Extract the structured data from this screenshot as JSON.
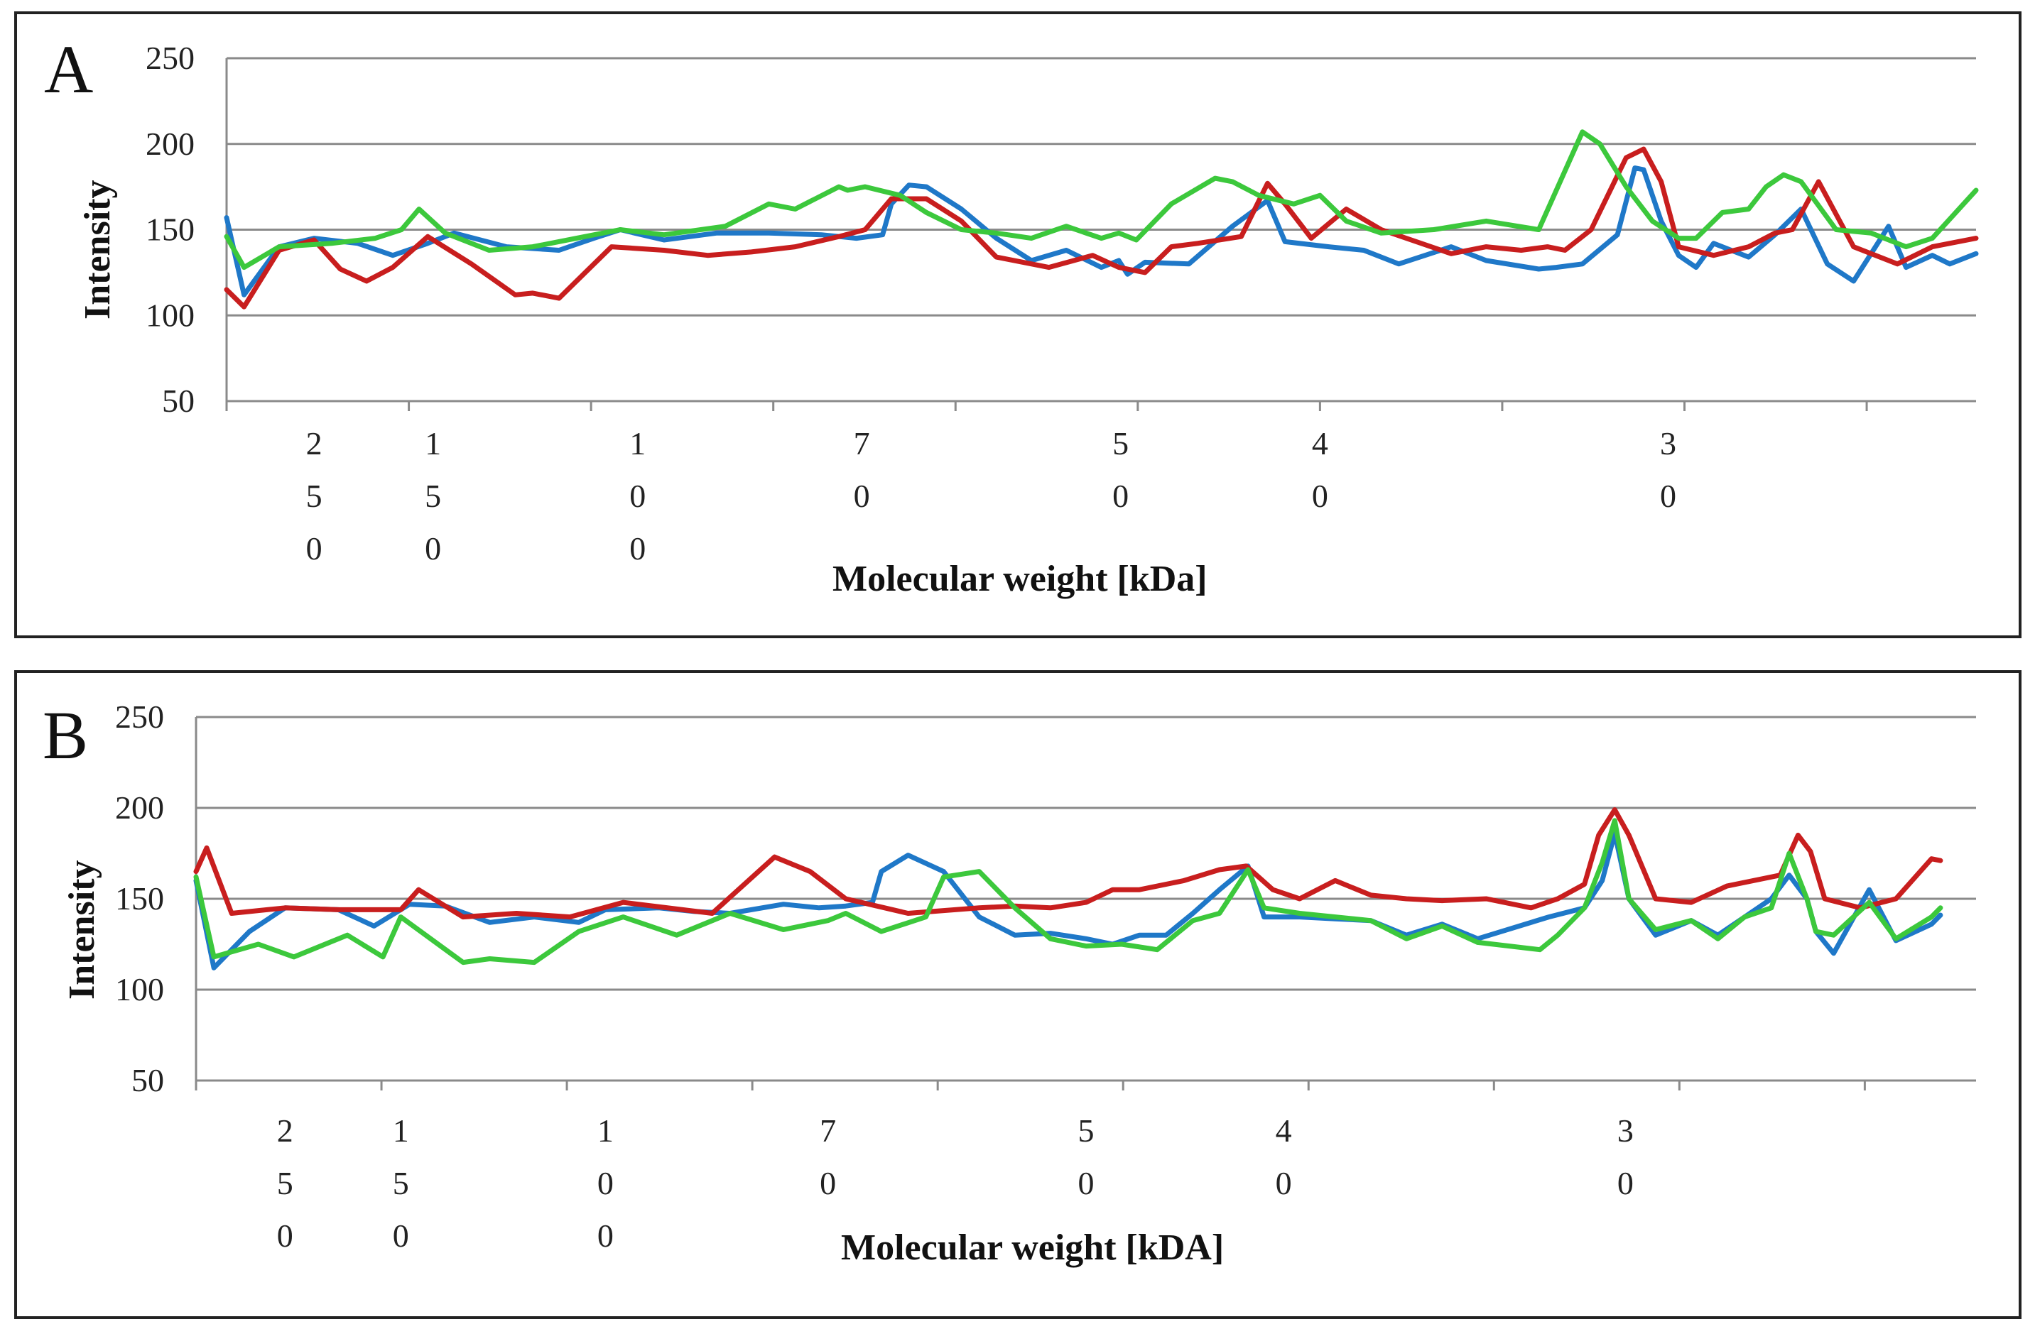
{
  "chart_data": [
    {
      "panel": "A",
      "type": "line",
      "xlabel": "Molecular weight [kDa]",
      "ylabel": "Intensity",
      "ylim": [
        50,
        250
      ],
      "yticks": [
        50,
        100,
        150,
        200,
        250
      ],
      "xlim": [
        0,
        1000
      ],
      "x_tick_labels": [
        {
          "pos": 50,
          "text": "250"
        },
        {
          "pos": 118,
          "text": "150"
        },
        {
          "pos": 235,
          "text": "100"
        },
        {
          "pos": 363,
          "text": "70"
        },
        {
          "pos": 511,
          "text": "50"
        },
        {
          "pos": 625,
          "text": "40"
        },
        {
          "pos": 824,
          "text": "30"
        }
      ],
      "series": [
        {
          "name": "blue",
          "color": "#1f78c8",
          "x": [
            0,
            10,
            30,
            50,
            75,
            95,
            115,
            130,
            160,
            190,
            210,
            225,
            250,
            280,
            310,
            340,
            360,
            375,
            380,
            390,
            400,
            420,
            440,
            460,
            480,
            500,
            510,
            515,
            525,
            550,
            575,
            595,
            605,
            630,
            650,
            670,
            700,
            720,
            750,
            760,
            775,
            795,
            805,
            810,
            820,
            830,
            840,
            850,
            870,
            885,
            900,
            915,
            930,
            950,
            960,
            975,
            985,
            1000
          ],
          "values": [
            157,
            112,
            140,
            145,
            142,
            135,
            142,
            148,
            140,
            138,
            145,
            150,
            144,
            148,
            148,
            147,
            145,
            147,
            165,
            176,
            175,
            162,
            145,
            132,
            138,
            128,
            132,
            124,
            131,
            130,
            152,
            167,
            143,
            140,
            138,
            130,
            140,
            132,
            127,
            128,
            130,
            147,
            186,
            185,
            155,
            135,
            128,
            142,
            134,
            147,
            162,
            130,
            120,
            152,
            128,
            135,
            130,
            136
          ]
        },
        {
          "name": "red",
          "color": "#c81e1e",
          "x": [
            0,
            10,
            30,
            50,
            65,
            80,
            95,
            115,
            140,
            165,
            175,
            190,
            220,
            250,
            275,
            300,
            325,
            350,
            365,
            380,
            400,
            420,
            440,
            470,
            495,
            510,
            525,
            540,
            555,
            580,
            595,
            605,
            620,
            640,
            660,
            700,
            720,
            740,
            755,
            765,
            780,
            800,
            810,
            820,
            830,
            850,
            870,
            885,
            895,
            910,
            930,
            955,
            975,
            1000
          ],
          "values": [
            115,
            105,
            138,
            144,
            127,
            120,
            128,
            146,
            130,
            112,
            113,
            110,
            140,
            138,
            135,
            137,
            140,
            146,
            150,
            168,
            168,
            155,
            134,
            128,
            135,
            128,
            125,
            140,
            142,
            146,
            177,
            165,
            145,
            162,
            150,
            136,
            140,
            138,
            140,
            138,
            150,
            192,
            197,
            178,
            140,
            135,
            140,
            148,
            150,
            178,
            140,
            130,
            140,
            145
          ]
        },
        {
          "name": "green",
          "color": "#3cc83c",
          "x": [
            0,
            10,
            30,
            60,
            85,
            100,
            110,
            125,
            150,
            175,
            200,
            225,
            250,
            285,
            310,
            325,
            350,
            355,
            365,
            385,
            400,
            420,
            440,
            460,
            480,
            500,
            510,
            520,
            540,
            565,
            575,
            590,
            610,
            625,
            640,
            660,
            690,
            720,
            750,
            775,
            785,
            800,
            815,
            830,
            840,
            855,
            870,
            880,
            890,
            900,
            920,
            940,
            960,
            975,
            1000
          ],
          "values": [
            146,
            128,
            140,
            142,
            145,
            150,
            162,
            148,
            138,
            140,
            145,
            150,
            147,
            152,
            165,
            162,
            175,
            173,
            175,
            170,
            160,
            150,
            148,
            145,
            152,
            145,
            148,
            144,
            165,
            180,
            178,
            170,
            165,
            170,
            155,
            148,
            150,
            155,
            150,
            207,
            200,
            175,
            155,
            145,
            145,
            160,
            162,
            175,
            182,
            178,
            150,
            148,
            140,
            145,
            173
          ]
        }
      ]
    },
    {
      "panel": "B",
      "type": "line",
      "xlabel": "Molecular weight [kDA]",
      "ylabel": "Intensity",
      "ylim": [
        50,
        250
      ],
      "yticks": [
        50,
        100,
        150,
        200,
        250
      ],
      "xlim": [
        0,
        1000
      ],
      "x_tick_labels": [
        {
          "pos": 50,
          "text": "250"
        },
        {
          "pos": 115,
          "text": "150"
        },
        {
          "pos": 230,
          "text": "100"
        },
        {
          "pos": 355,
          "text": "70"
        },
        {
          "pos": 500,
          "text": "50"
        },
        {
          "pos": 611,
          "text": "40"
        },
        {
          "pos": 803,
          "text": "30"
        }
      ],
      "series": [
        {
          "name": "blue",
          "color": "#1f78c8",
          "x": [
            0,
            10,
            30,
            50,
            80,
            100,
            120,
            140,
            165,
            190,
            215,
            230,
            260,
            280,
            300,
            330,
            350,
            365,
            380,
            385,
            400,
            420,
            440,
            460,
            480,
            500,
            515,
            530,
            545,
            560,
            575,
            591,
            600,
            620,
            640,
            660,
            680,
            700,
            720,
            760,
            780,
            790,
            797,
            805,
            820,
            840,
            855,
            870,
            885,
            895,
            905,
            910,
            920,
            940,
            955,
            975,
            980
          ],
          "values": [
            160,
            112,
            132,
            145,
            144,
            135,
            147,
            146,
            137,
            140,
            137,
            144,
            145,
            143,
            142,
            147,
            145,
            146,
            148,
            165,
            174,
            165,
            140,
            130,
            131,
            128,
            125,
            130,
            130,
            142,
            155,
            168,
            140,
            140,
            139,
            138,
            130,
            136,
            128,
            140,
            145,
            160,
            186,
            150,
            130,
            138,
            130,
            140,
            150,
            163,
            150,
            132,
            120,
            155,
            127,
            136,
            141
          ]
        },
        {
          "name": "red",
          "color": "#c81e1e",
          "x": [
            0,
            6,
            20,
            50,
            80,
            115,
            125,
            150,
            180,
            210,
            240,
            290,
            325,
            345,
            365,
            400,
            440,
            460,
            480,
            500,
            515,
            530,
            555,
            575,
            590,
            605,
            620,
            640,
            660,
            680,
            700,
            725,
            750,
            765,
            780,
            788,
            797,
            805,
            820,
            840,
            860,
            890,
            900,
            907,
            915,
            935,
            955,
            975,
            980
          ],
          "values": [
            165,
            178,
            142,
            145,
            144,
            144,
            155,
            140,
            142,
            140,
            148,
            142,
            173,
            165,
            150,
            142,
            145,
            146,
            145,
            148,
            155,
            155,
            160,
            166,
            168,
            155,
            150,
            160,
            152,
            150,
            149,
            150,
            145,
            150,
            158,
            185,
            199,
            185,
            150,
            148,
            157,
            163,
            185,
            176,
            150,
            145,
            150,
            172,
            171
          ]
        },
        {
          "name": "green",
          "color": "#3cc83c",
          "x": [
            0,
            10,
            35,
            55,
            85,
            105,
            115,
            150,
            165,
            190,
            215,
            240,
            270,
            300,
            330,
            355,
            365,
            385,
            410,
            420,
            440,
            460,
            480,
            500,
            520,
            540,
            560,
            575,
            591,
            600,
            620,
            640,
            660,
            680,
            700,
            720,
            755,
            765,
            780,
            790,
            797,
            805,
            820,
            840,
            855,
            870,
            885,
            895,
            905,
            910,
            920,
            940,
            955,
            975,
            980
          ],
          "values": [
            162,
            118,
            125,
            118,
            130,
            118,
            140,
            115,
            117,
            115,
            132,
            140,
            130,
            142,
            133,
            138,
            142,
            132,
            140,
            162,
            165,
            145,
            128,
            124,
            125,
            122,
            138,
            142,
            166,
            145,
            142,
            140,
            138,
            128,
            135,
            126,
            122,
            130,
            145,
            170,
            193,
            150,
            133,
            138,
            128,
            140,
            145,
            175,
            150,
            132,
            130,
            148,
            128,
            140,
            145
          ]
        }
      ]
    }
  ],
  "panel_letters": {
    "a": "A",
    "b": "B"
  },
  "axis_labels": {
    "a": {
      "x": "Molecular weight [kDa]",
      "y": "Intensity"
    },
    "b": {
      "x": "Molecular weight [kDA]",
      "y": "Intensity"
    }
  }
}
